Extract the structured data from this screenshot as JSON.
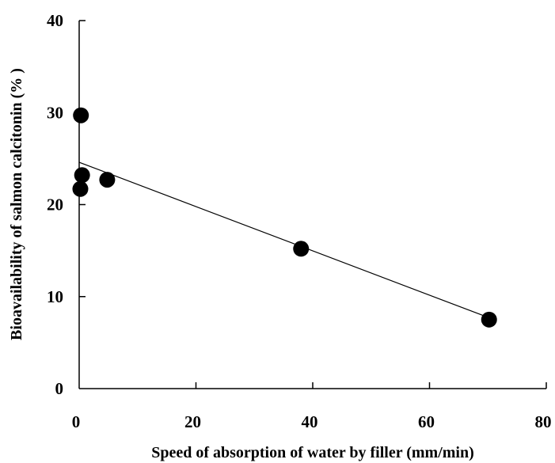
{
  "chart_data": {
    "type": "scatter",
    "title": "",
    "xlabel": "Speed of absorption of water by filler (mm/min)",
    "ylabel": "Bioavailability of salmon calcitonin (% )",
    "xlim": [
      0,
      80
    ],
    "ylim": [
      0,
      40
    ],
    "x_ticks": [
      0,
      20,
      40,
      60,
      80
    ],
    "y_ticks": [
      0,
      10,
      20,
      30,
      40
    ],
    "grid": false,
    "legend": "none",
    "marker_color": "#000000",
    "points": [
      {
        "x": 0.3,
        "y": 29.7
      },
      {
        "x": 0.5,
        "y": 23.2
      },
      {
        "x": 0.2,
        "y": 21.7
      },
      {
        "x": 4.8,
        "y": 22.7
      },
      {
        "x": 38.0,
        "y": 15.2
      },
      {
        "x": 70.2,
        "y": 7.5
      }
    ],
    "trendline": {
      "type": "linear",
      "x": [
        0,
        70.2
      ],
      "y": [
        24.6,
        7.7
      ]
    }
  }
}
